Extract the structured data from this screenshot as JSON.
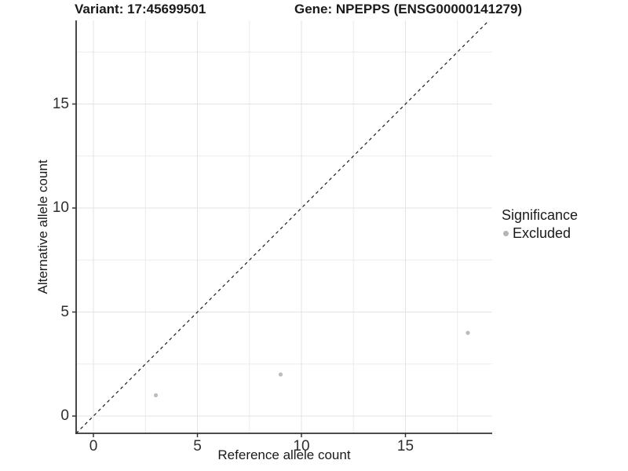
{
  "chart_data": {
    "type": "scatter",
    "title_left": "Variant: 17:45699501",
    "title_right": "Gene: NPEPPS (ENSG00000141279)",
    "xlabel": "Reference allele count",
    "ylabel": "Alternative allele count",
    "x_ticks": [
      0,
      5,
      10,
      15
    ],
    "y_ticks": [
      0,
      5,
      10,
      15
    ],
    "x_minor_gridlines": [
      2.5,
      7.5,
      12.5,
      17.5
    ],
    "y_minor_gridlines": [
      2.5,
      7.5,
      12.5,
      17.5
    ],
    "xlim": [
      -0.83,
      19.17
    ],
    "ylim": [
      -0.83,
      19.02
    ],
    "grid": true,
    "series": [
      {
        "name": "Excluded",
        "points": [
          {
            "x": 3,
            "y": 1
          },
          {
            "x": 9,
            "y": 2
          },
          {
            "x": 18,
            "y": 4
          }
        ],
        "color": "#bcbcbc"
      }
    ],
    "identity_line": {
      "style": "dashed",
      "slope": 1,
      "intercept": 0,
      "color": "#1a1a1a"
    },
    "legend": {
      "position": "right",
      "title": "Significance",
      "items": [
        {
          "label": "Excluded",
          "color": "#b5b5b5"
        }
      ]
    },
    "colors": {
      "background": "#ffffff",
      "grid_major": "#e3e3e3",
      "grid_minor": "#ececec",
      "axis_line": "#333333",
      "tick_mark": "#333333",
      "tick_text": "#2e2e2e",
      "point": "#bcbcbc"
    }
  }
}
